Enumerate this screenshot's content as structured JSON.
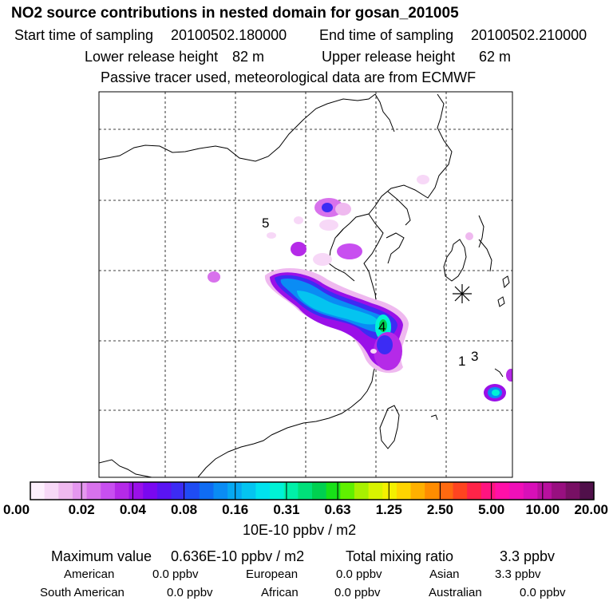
{
  "header": {
    "title": "NO2 source contributions in nested domain for gosan_201005",
    "start_label": "Start time of sampling",
    "start_value": "20100502.180000",
    "end_label": "End time of sampling",
    "end_value": "20100502.210000",
    "lower_label": "Lower release height",
    "lower_value": "82 m",
    "upper_label": "Upper release height",
    "upper_value": "62 m",
    "tracer_note": "Passive tracer used, meteorological data are from ECMWF"
  },
  "map": {
    "region_labels": [
      "5",
      "4",
      "1",
      "3"
    ],
    "receptor_marker": "asterisk-receptor"
  },
  "colorbar": {
    "colors": [
      "#fdf0fd",
      "#f7d8f7",
      "#efb9ef",
      "#e597ef",
      "#d872ec",
      "#c84ff0",
      "#b52ae8",
      "#9a10e8",
      "#7a08f0",
      "#5a14f2",
      "#3c2cf4",
      "#1f4cf4",
      "#0f6cf4",
      "#0a8cf4",
      "#06a8f2",
      "#04c4f0",
      "#00e2ee",
      "#00f2d6",
      "#00f0a8",
      "#00e07a",
      "#00d050",
      "#18e018",
      "#60f000",
      "#a8f000",
      "#d8f400",
      "#f4f000",
      "#ffd400",
      "#ffb000",
      "#ff8c00",
      "#ff6a10",
      "#ff4420",
      "#ff2448",
      "#ff1480",
      "#ff10a8",
      "#f010b8",
      "#d810b8",
      "#b8109e",
      "#981080",
      "#781064",
      "#50104a"
    ],
    "tick_labels": [
      "0.00",
      "0.02",
      "0.04",
      "0.08",
      "0.16",
      "0.31",
      "0.63",
      "1.25",
      "2.50",
      "5.00",
      "10.00",
      "20.00"
    ],
    "unit_label": "10E-10 ppbv / m2"
  },
  "summary": {
    "max_label": "Maximum value",
    "max_value": "0.636E-10 ppbv / m2",
    "total_label": "Total mixing ratio",
    "total_value": "3.3 ppbv",
    "regions": [
      {
        "name": "American",
        "value": "0.0 ppbv"
      },
      {
        "name": "European",
        "value": "0.0 ppbv"
      },
      {
        "name": "Asian",
        "value": "3.3 ppbv"
      },
      {
        "name": "South American",
        "value": "0.0 ppbv"
      },
      {
        "name": "African",
        "value": "0.0 ppbv"
      },
      {
        "name": "Australian",
        "value": "0.0 ppbv"
      }
    ]
  }
}
